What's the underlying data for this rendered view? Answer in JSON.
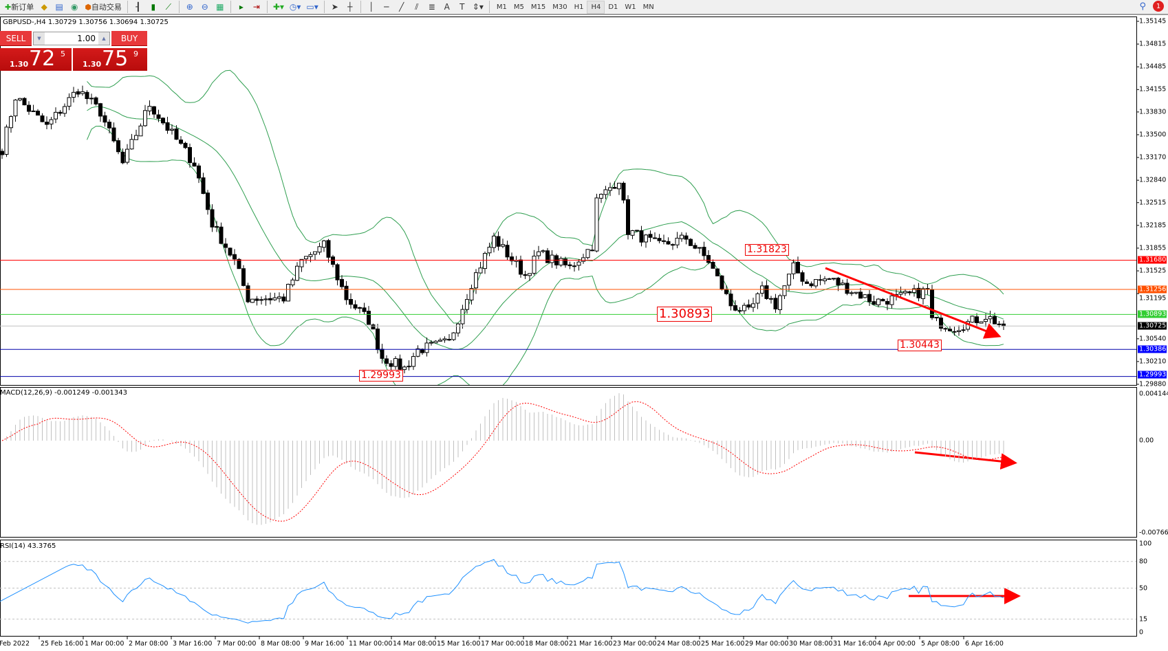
{
  "toolbar": {
    "buttons": [
      {
        "icon": "new-order-icon",
        "label": "新订单"
      },
      {
        "icon": "metaeditor-icon",
        "label": ""
      },
      {
        "icon": "terminal-icon",
        "label": ""
      },
      {
        "icon": "signals-icon",
        "label": ""
      },
      {
        "icon": "autotrading-icon",
        "label": "自动交易"
      }
    ],
    "tools": [
      "bar-chart-icon",
      "candlestick-icon",
      "line-chart-icon",
      "zoom-in-icon",
      "zoom-out-icon",
      "tile-windows-icon",
      "chart-shift-icon",
      "autoscroll-icon",
      "indicators-icon",
      "periods-icon",
      "templates-icon",
      "cursor-icon",
      "crosshair-icon",
      "vertical-line-icon",
      "horizontal-line-icon",
      "trendline-icon",
      "equidistant-channel-icon",
      "fibonacci-icon",
      "text-icon",
      "text-label-icon",
      "arrows-icon"
    ],
    "timeframes": [
      "M1",
      "M5",
      "M15",
      "M30",
      "H1",
      "H4",
      "D1",
      "W1",
      "MN"
    ],
    "active_timeframe": "H4",
    "notification_count": "1"
  },
  "symbol_info": "GBPUSD-,H4  1.30729 1.30756 1.30694 1.30725",
  "one_click": {
    "sell_label": "SELL",
    "buy_label": "BUY",
    "lot": "1.00",
    "sell": {
      "prefix": "1.30",
      "big": "72",
      "sup": "5"
    },
    "buy": {
      "prefix": "1.30",
      "big": "75",
      "sup": "9"
    }
  },
  "macd_label": "MACD(12,26,9) -0.001249 -0.001343",
  "rsi_label": "RSI(14) 43.3765",
  "price_axis": [
    "1.35145",
    "1.34815",
    "1.34485",
    "1.34155",
    "1.33830",
    "1.33500",
    "1.33170",
    "1.32840",
    "1.32515",
    "1.32185",
    "1.31855",
    "1.31525",
    "1.31195",
    "1.30540",
    "1.30210",
    "1.29880"
  ],
  "hlines": [
    {
      "price": "1.31680",
      "color": "#ff0000"
    },
    {
      "price": "1.31256",
      "color": "#ff5000"
    },
    {
      "price": "1.30893",
      "color": "#32cd32"
    },
    {
      "price": "1.30725",
      "color": "#000000",
      "line": "#c0c0c0"
    },
    {
      "price": "1.30386",
      "color": "#0000ff",
      "line": "#0000aa"
    },
    {
      "price": "1.29993",
      "color": "#0000ff",
      "line": "#0000aa"
    }
  ],
  "price_texts": [
    {
      "text": "1.31823",
      "size": "small"
    },
    {
      "text": "1.30893",
      "size": "large"
    },
    {
      "text": "1.30443",
      "size": "small"
    },
    {
      "text": "1.29993",
      "size": "small"
    }
  ],
  "macd_axis": [
    "0.004144",
    "0.00",
    "-0.007664"
  ],
  "rsi_axis": [
    "100",
    "80",
    "50",
    "15",
    "0"
  ],
  "time_axis": [
    "Feb 2022",
    "25 Feb 16:00",
    "1 Mar 00:00",
    "2 Mar 08:00",
    "3 Mar 16:00",
    "7 Mar 00:00",
    "8 Mar 08:00",
    "9 Mar 16:00",
    "11 Mar 00:00",
    "14 Mar 08:00",
    "15 Mar 16:00",
    "17 Mar 00:00",
    "18 Mar 08:00",
    "21 Mar 16:00",
    "23 Mar 00:00",
    "24 Mar 08:00",
    "25 Mar 16:00",
    "29 Mar 00:00",
    "30 Mar 08:00",
    "31 Mar 16:00",
    "4 Apr 00:00",
    "5 Apr 08:00",
    "6 Apr 16:00"
  ],
  "chart_data": {
    "type": "candlestick",
    "symbol": "GBPUSD-",
    "timeframe": "H4",
    "ylim": [
      1.2988,
      1.35145
    ],
    "last_close": 1.30725,
    "close_anchors": [
      [
        0,
        1.3329
      ],
      [
        3,
        1.3405
      ],
      [
        10,
        1.3362
      ],
      [
        17,
        1.3416
      ],
      [
        22,
        1.3383
      ],
      [
        27,
        1.3308
      ],
      [
        33,
        1.3394
      ],
      [
        38,
        1.3351
      ],
      [
        43,
        1.3308
      ],
      [
        47,
        1.3221
      ],
      [
        52,
        1.3167
      ],
      [
        55,
        1.3113
      ],
      [
        63,
        1.3113
      ],
      [
        67,
        1.3167
      ],
      [
        72,
        1.3189
      ],
      [
        77,
        1.3113
      ],
      [
        82,
        1.3081
      ],
      [
        85,
        1.3027
      ],
      [
        90,
        1.3011
      ],
      [
        93,
        1.3038
      ],
      [
        100,
        1.3049
      ],
      [
        105,
        1.3135
      ],
      [
        110,
        1.32
      ],
      [
        117,
        1.3146
      ],
      [
        120,
        1.3178
      ],
      [
        127,
        1.3157
      ],
      [
        132,
        1.3189
      ],
      [
        133,
        1.3254
      ],
      [
        138,
        1.3286
      ],
      [
        140,
        1.3211
      ],
      [
        147,
        1.3189
      ],
      [
        153,
        1.32
      ],
      [
        158,
        1.3167
      ],
      [
        163,
        1.3103
      ],
      [
        167,
        1.3092
      ],
      [
        170,
        1.3124
      ],
      [
        173,
        1.3103
      ],
      [
        177,
        1.3157
      ],
      [
        180,
        1.3135
      ],
      [
        185,
        1.3141
      ],
      [
        190,
        1.3124
      ],
      [
        195,
        1.3108
      ],
      [
        200,
        1.3113
      ],
      [
        207,
        1.3124
      ],
      [
        208,
        1.3081
      ],
      [
        213,
        1.307
      ],
      [
        220,
        1.3087
      ],
      [
        224,
        1.30725
      ]
    ],
    "bollinger": {
      "period": 20,
      "deviation": 2,
      "color": "#2e9e4f"
    },
    "macd": {
      "fast": 12,
      "slow": 26,
      "signal": 9,
      "ylim": [
        -0.007664,
        0.004144
      ],
      "histogram_color": "#c0c0c0",
      "signal_color": "#ff0000"
    },
    "rsi": {
      "period": 14,
      "levels": [
        80,
        50,
        15
      ],
      "ylim": [
        0,
        100
      ],
      "color": "#1e90ff"
    },
    "annotation_color": "#ff0000"
  }
}
